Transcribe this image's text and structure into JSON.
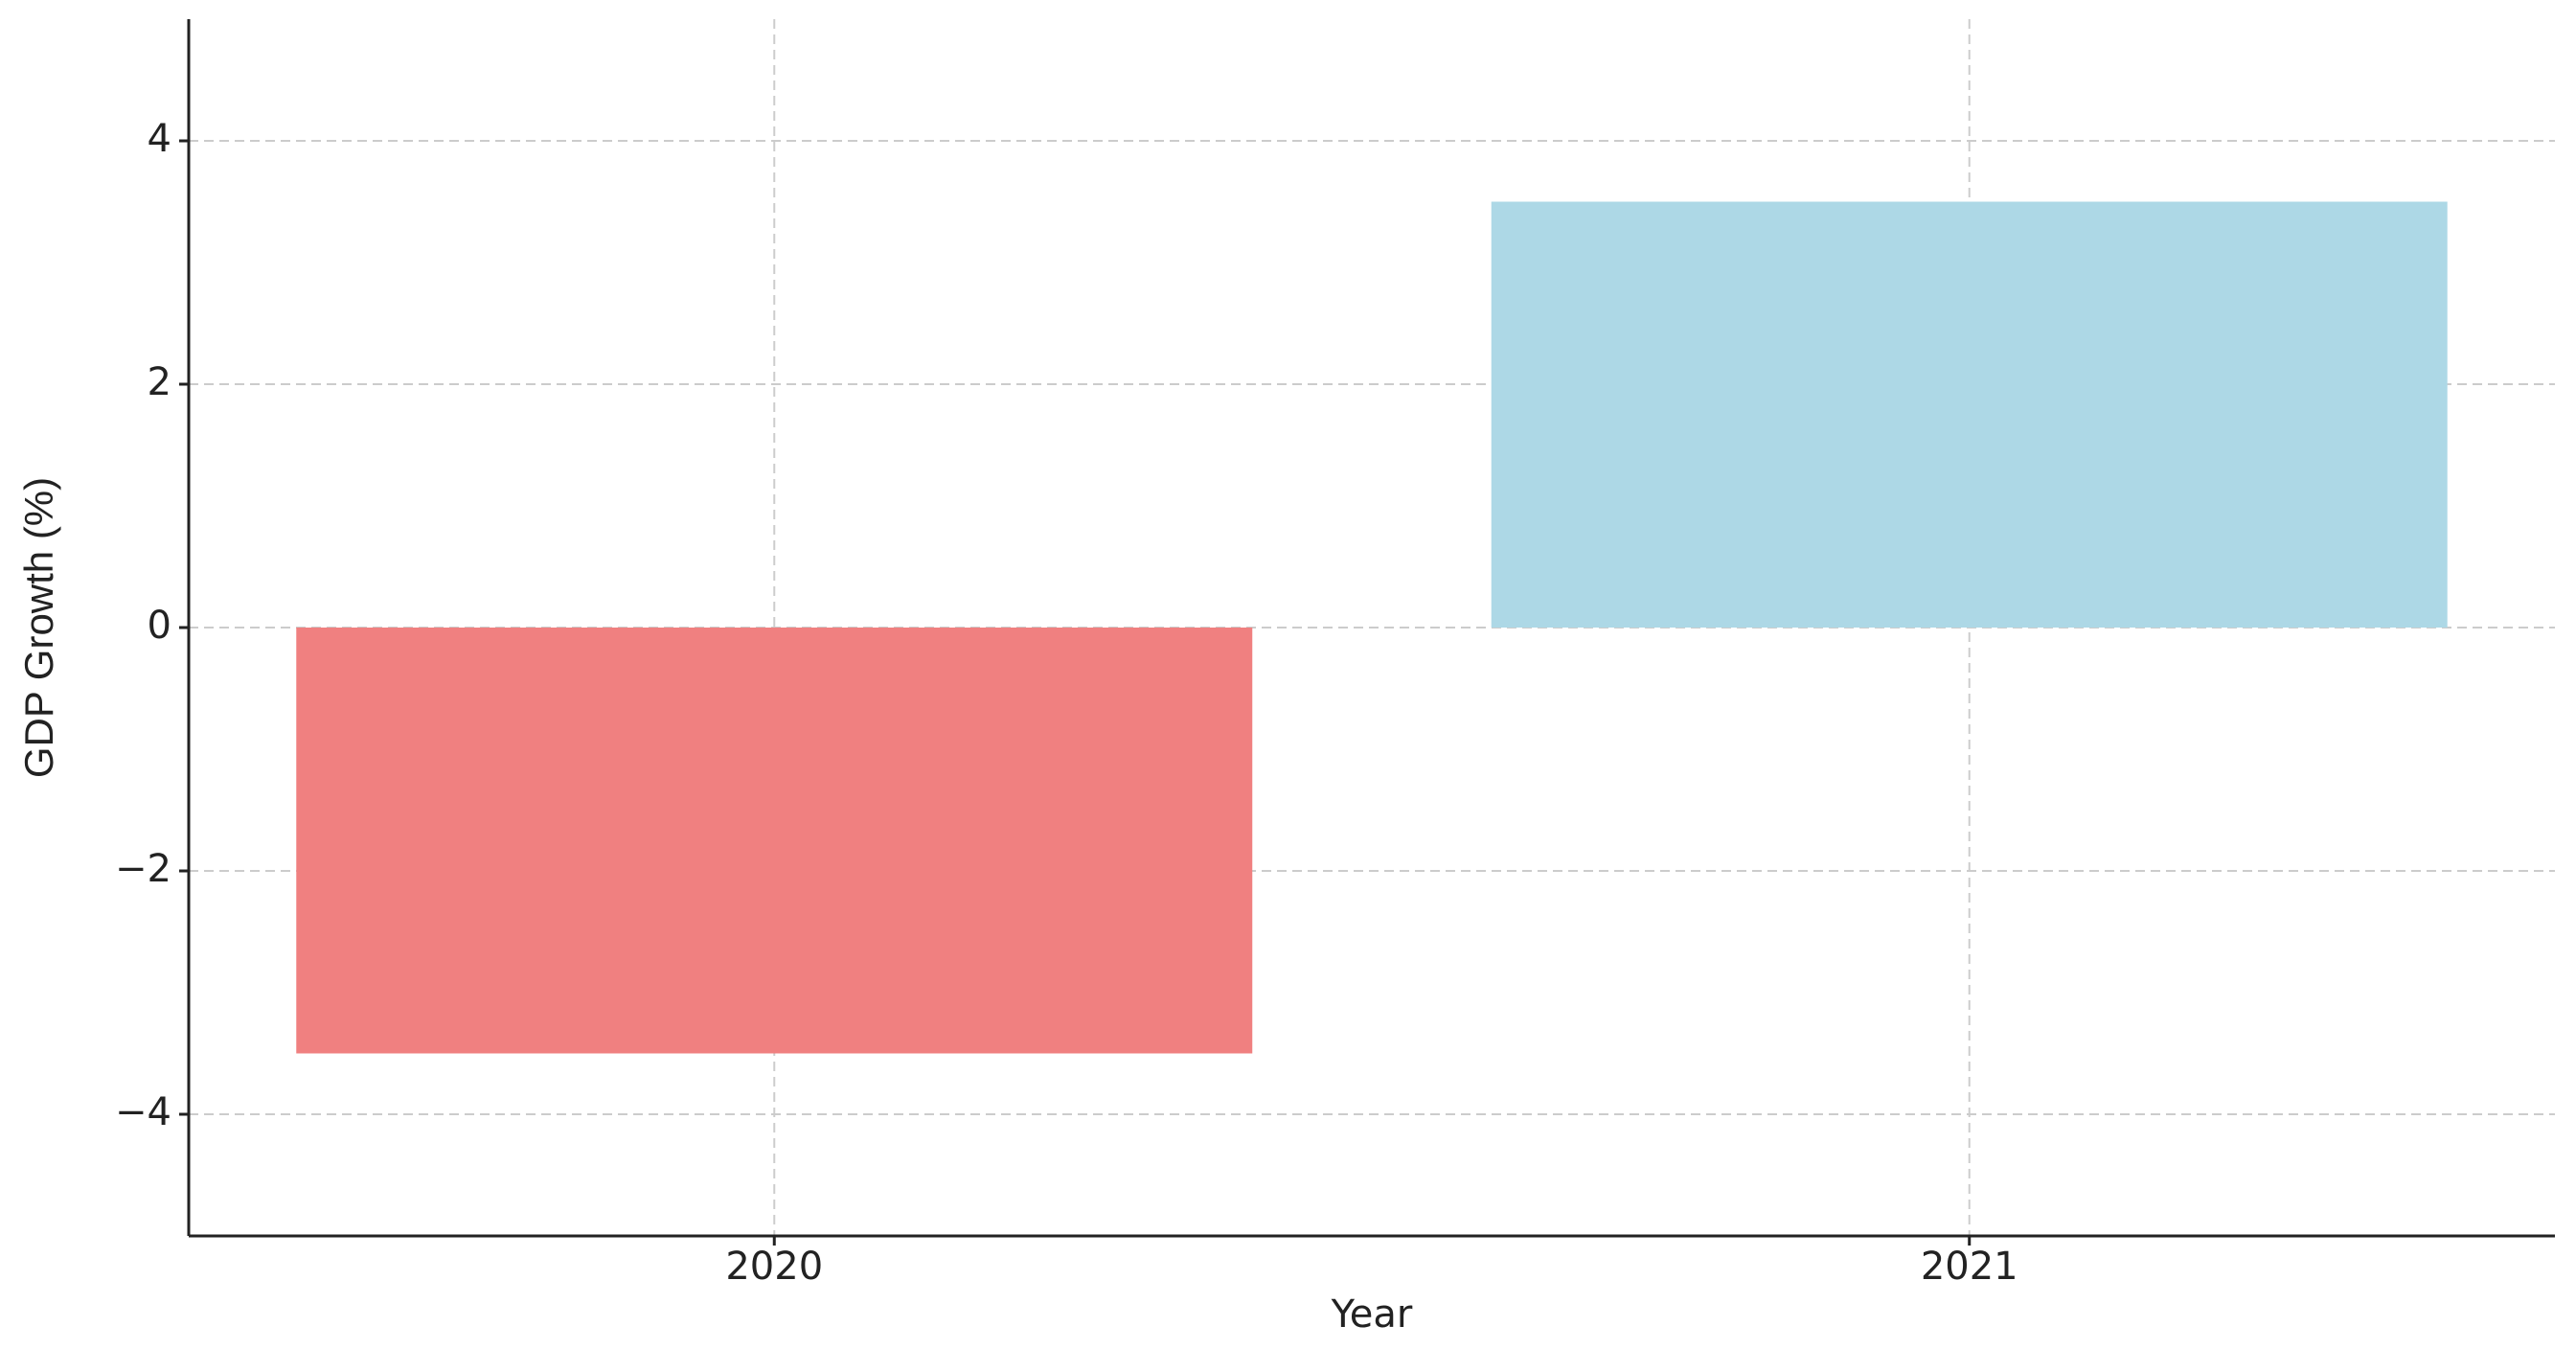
{
  "chart_data": {
    "type": "bar",
    "categories": [
      "2020",
      "2021"
    ],
    "values": [
      -3.5,
      3.5
    ],
    "colors": [
      "#f08080",
      "#add8e6"
    ],
    "xlabel": "Year",
    "ylabel": "GDP Growth (%)",
    "ylim": [
      -5,
      5
    ],
    "yticks": [
      {
        "value": -4,
        "label": "−4"
      },
      {
        "value": -2,
        "label": "−2"
      },
      0,
      2,
      4
    ],
    "grid": true
  }
}
